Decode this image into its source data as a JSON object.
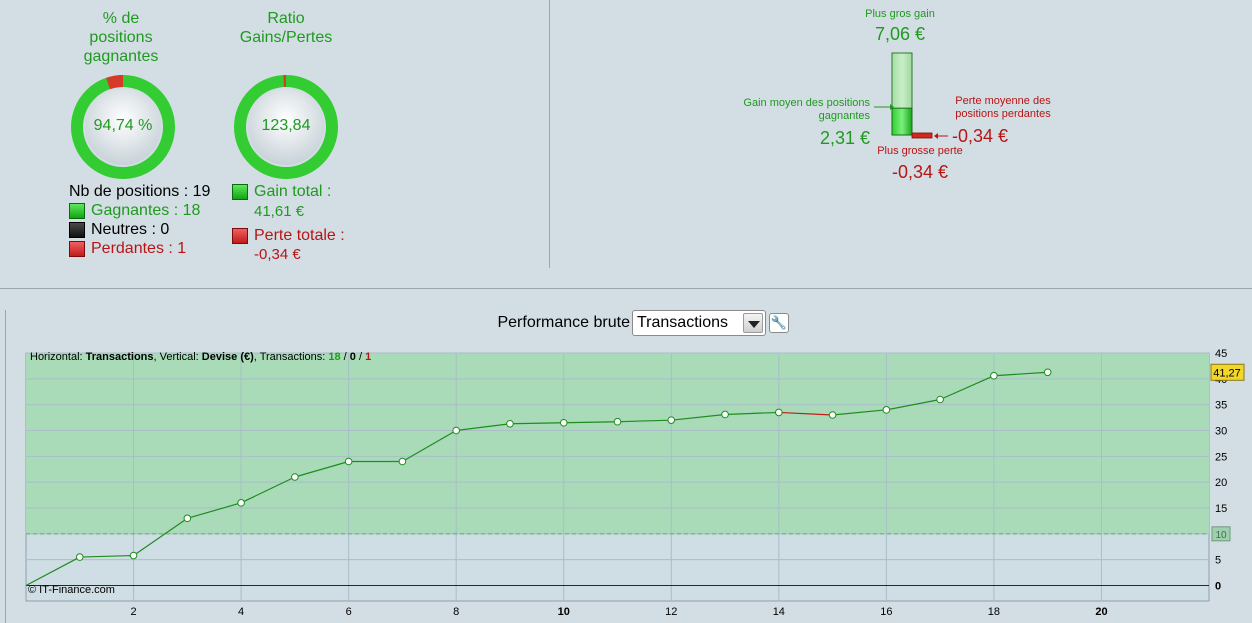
{
  "win_pct": {
    "title": "% de\npositions\ngagnantes",
    "value_label": "94,74 %",
    "fraction": 0.9474
  },
  "ratio": {
    "title": "Ratio\nGains/Pertes",
    "value_label": "123,84",
    "fraction": 0.992
  },
  "positions": {
    "total_label": "Nb de positions : 19",
    "winners_label": "Gagnantes : 18",
    "neutral_label": "Neutres : 0",
    "losers_label": "Perdantes : 1"
  },
  "totals": {
    "gain_label": "Gain total :",
    "gain_value": "41,61 €",
    "loss_label": "Perte totale :",
    "loss_value": "-0,34 €"
  },
  "gauge": {
    "max_gain_label": "Plus gros gain",
    "max_gain_value": "7,06 €",
    "avg_gain_label": "Gain moyen des positions\ngagnantes",
    "avg_gain_value": "2,31 €",
    "avg_loss_label": "Perte moyenne des\npositions perdantes",
    "avg_loss_value": "-0,34 €",
    "max_loss_label": "Plus grosse perte",
    "max_loss_value": "-0,34 €",
    "max_gain": 7.06,
    "avg_gain": 2.31,
    "avg_loss": -0.34
  },
  "controls": {
    "performance_label": "Performance brute",
    "select_value": "Transactions"
  },
  "colors": {
    "green": "#1f9a1f",
    "red": "#b81414",
    "chart_fill": "#a9dbb9",
    "line_green": "#1e8c1e",
    "line_red": "#c41a1a",
    "zero_line": "#1a1aa0",
    "badge": "#f2d62b"
  },
  "chart_data": {
    "type": "line",
    "info": {
      "h_prefix": "Horizontal: ",
      "h_value": "Transactions",
      "v_prefix": ", Vertical: ",
      "v_value": "Devise (€)",
      "t_prefix": ", Transactions: ",
      "t_win": "18",
      "t_sep1": " / ",
      "t_neutral": "0",
      "t_sep2": " / ",
      "t_loss": "1"
    },
    "copyright": "© IT-Finance.com",
    "x": [
      0,
      1,
      2,
      3,
      4,
      5,
      6,
      7,
      8,
      9,
      10,
      11,
      12,
      13,
      14,
      15,
      16,
      17,
      18,
      19
    ],
    "y": [
      0,
      5.5,
      5.8,
      13,
      16,
      21,
      24,
      24,
      30,
      31.3,
      31.5,
      31.7,
      32,
      33.1,
      33.5,
      33,
      34,
      36,
      40.6,
      41.27
    ],
    "loss_segment": [
      14,
      15
    ],
    "xlim": [
      0,
      22
    ],
    "ylim": [
      -3,
      45
    ],
    "x_ticks": [
      2,
      4,
      6,
      8,
      10,
      12,
      14,
      16,
      18,
      20
    ],
    "x_ticks_bold": [
      10,
      20
    ],
    "y_ticks": [
      5,
      15,
      20,
      25,
      30,
      35,
      40,
      45
    ],
    "y_bold_ticks": [
      0
    ],
    "threshold": 10,
    "threshold_label": "10",
    "last_value_label": "41,27",
    "last_value": 41.27
  }
}
